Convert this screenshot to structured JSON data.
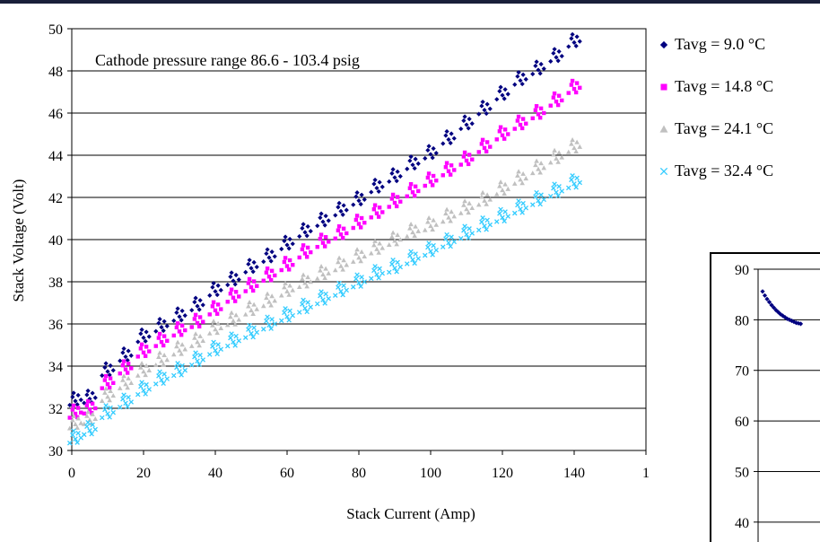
{
  "chart_data": [
    {
      "type": "scatter",
      "annotation": "Cathode pressure range 86.6 - 103.4 psig",
      "xlabel": "Stack Current (Amp)",
      "ylabel": "Stack Voltage (Volt)",
      "xlim": [
        0,
        160
      ],
      "ylim": [
        30,
        50
      ],
      "x_ticks": [
        "0",
        "20",
        "40",
        "60",
        "80",
        "100",
        "120",
        "140",
        "1"
      ],
      "y_ticks": [
        "30",
        "32",
        "34",
        "36",
        "38",
        "40",
        "42",
        "44",
        "46",
        "48",
        "50"
      ],
      "grid": "horizontal",
      "legend_position": "right",
      "x": [
        1,
        5,
        10,
        15,
        20,
        25,
        30,
        35,
        40,
        45,
        50,
        55,
        60,
        65,
        70,
        75,
        80,
        85,
        90,
        95,
        100,
        105,
        110,
        115,
        120,
        125,
        130,
        135,
        140
      ],
      "series": [
        {
          "name": "Tavg = 9.0 °C",
          "marker": "diamond",
          "color": "#000080",
          "values": [
            32.4,
            32.5,
            33.8,
            34.5,
            35.4,
            35.9,
            36.4,
            36.9,
            37.6,
            38.1,
            38.7,
            39.2,
            39.8,
            40.4,
            40.9,
            41.4,
            41.9,
            42.5,
            43.0,
            43.6,
            44.1,
            44.8,
            45.5,
            46.2,
            46.9,
            47.6,
            48.1,
            48.7,
            49.4
          ]
        },
        {
          "name": "Tavg = 14.8 °C",
          "marker": "square",
          "color": "#FF00FF",
          "values": [
            31.8,
            32.0,
            33.2,
            33.9,
            34.7,
            35.2,
            35.7,
            36.1,
            36.7,
            37.3,
            37.8,
            38.3,
            38.8,
            39.4,
            39.9,
            40.3,
            40.8,
            41.3,
            41.8,
            42.3,
            42.8,
            43.3,
            43.8,
            44.4,
            45.0,
            45.5,
            46.0,
            46.6,
            47.2
          ]
        },
        {
          "name": "Tavg = 24.1 °C",
          "marker": "triangle",
          "color": "#C0C0C0",
          "values": [
            31.3,
            31.5,
            32.6,
            33.2,
            33.8,
            34.3,
            34.8,
            35.2,
            35.8,
            36.2,
            36.7,
            37.1,
            37.6,
            38.0,
            38.4,
            38.8,
            39.2,
            39.6,
            40.0,
            40.4,
            40.7,
            41.1,
            41.5,
            41.9,
            42.4,
            42.9,
            43.4,
            43.9,
            44.4
          ]
        },
        {
          "name": "Tavg = 32.4 °C",
          "marker": "x",
          "color": "#33CCFF",
          "values": [
            30.6,
            31.0,
            31.8,
            32.3,
            32.9,
            33.4,
            33.8,
            34.3,
            34.8,
            35.2,
            35.6,
            36.0,
            36.4,
            36.8,
            37.2,
            37.6,
            38.0,
            38.4,
            38.7,
            39.1,
            39.5,
            39.9,
            40.3,
            40.7,
            41.1,
            41.5,
            41.9,
            42.3,
            42.7
          ]
        }
      ]
    },
    {
      "type": "scatter",
      "ylim": [
        35,
        90
      ],
      "y_ticks": [
        "40",
        "50",
        "60",
        "70",
        "80",
        "90"
      ],
      "grid": "horizontal",
      "x": [
        1,
        2,
        3,
        4,
        5,
        6,
        7,
        8,
        9,
        10,
        11,
        12,
        13,
        14,
        15,
        16,
        17,
        18
      ],
      "series": [
        {
          "marker": "diamond",
          "color": "#000080",
          "values": [
            85.6,
            84.8,
            84.1,
            83.5,
            82.9,
            82.4,
            81.9,
            81.5,
            81.1,
            80.8,
            80.5,
            80.2,
            80.0,
            79.8,
            79.6,
            79.4,
            79.3,
            79.2
          ]
        }
      ]
    }
  ]
}
